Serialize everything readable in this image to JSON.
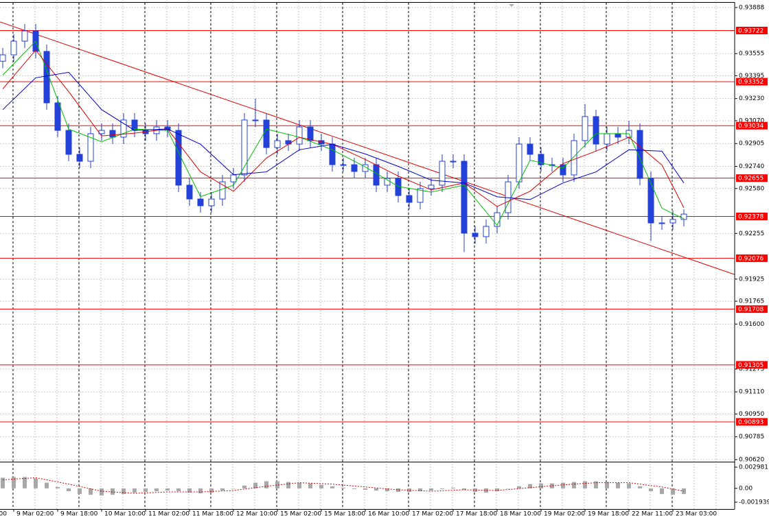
{
  "chart_data": {
    "type": "candlestick",
    "candle_color": "#2340d8",
    "open": [
      0.935,
      0.93546,
      0.93645,
      0.93719,
      0.93571,
      0.93199,
      0.93,
      0.92827,
      0.92777,
      0.92976,
      0.93,
      0.92951,
      0.93075,
      0.93,
      0.92976,
      0.93025,
      0.93,
      0.92604,
      0.92504,
      0.92455,
      0.92504,
      0.92628,
      0.92678,
      0.93075,
      0.93075,
      0.92876,
      0.92926,
      0.92901,
      0.93025,
      0.92926,
      0.92901,
      0.92752,
      0.92752,
      0.92703,
      0.92752,
      0.92604,
      0.92653,
      0.92529,
      0.9248,
      0.92579,
      0.92604,
      0.92777,
      0.92777,
      0.92257,
      0.92232,
      0.92306,
      0.92405,
      0.92628,
      0.92901,
      0.92827,
      0.92752,
      0.92752,
      0.92678,
      0.92926,
      0.931,
      0.92901,
      0.92976,
      0.92951,
      0.93,
      0.92653,
      0.92331,
      0.92331,
      0.92356
    ],
    "high": [
      0.93596,
      0.93695,
      0.93769,
      0.93769,
      0.93621,
      0.93249,
      0.9305,
      0.92877,
      0.93026,
      0.9305,
      0.9305,
      0.93125,
      0.93125,
      0.9305,
      0.93075,
      0.93075,
      0.9305,
      0.92654,
      0.92554,
      0.92554,
      0.92678,
      0.92728,
      0.93125,
      0.9323,
      0.93125,
      0.92976,
      0.92976,
      0.93075,
      0.93075,
      0.92976,
      0.92951,
      0.92802,
      0.92802,
      0.92802,
      0.92802,
      0.92703,
      0.92703,
      0.92579,
      0.92629,
      0.92654,
      0.92827,
      0.92827,
      0.92827,
      0.92307,
      0.92356,
      0.92455,
      0.92678,
      0.92951,
      0.92951,
      0.92877,
      0.92802,
      0.92802,
      0.92976,
      0.9319,
      0.9315,
      0.93026,
      0.93026,
      0.9307,
      0.9305,
      0.92703,
      0.92381,
      0.9242,
      0.9243
    ],
    "low": [
      0.9345,
      0.93496,
      0.93595,
      0.93521,
      0.93149,
      0.9295,
      0.92777,
      0.92727,
      0.92727,
      0.92926,
      0.92901,
      0.92901,
      0.9295,
      0.92926,
      0.92926,
      0.9295,
      0.92554,
      0.92454,
      0.92405,
      0.92405,
      0.92454,
      0.92578,
      0.92628,
      0.93025,
      0.92826,
      0.92826,
      0.92851,
      0.92851,
      0.92876,
      0.92851,
      0.92702,
      0.92702,
      0.92653,
      0.92653,
      0.92554,
      0.92554,
      0.92479,
      0.9243,
      0.9243,
      0.92529,
      0.92554,
      0.92727,
      0.9212,
      0.92182,
      0.92182,
      0.92256,
      0.92355,
      0.92578,
      0.92777,
      0.92702,
      0.92702,
      0.92628,
      0.92628,
      0.92876,
      0.92851,
      0.92851,
      0.92901,
      0.92901,
      0.92603,
      0.922,
      0.92281,
      0.92281,
      0.92306
    ],
    "close": [
      0.93546,
      0.93645,
      0.93719,
      0.93571,
      0.93199,
      0.93,
      0.92827,
      0.92777,
      0.92976,
      0.93,
      0.92951,
      0.93075,
      0.93,
      0.92976,
      0.93025,
      0.93,
      0.92604,
      0.92504,
      0.92455,
      0.92504,
      0.92628,
      0.92678,
      0.93075,
      0.93075,
      0.92876,
      0.92926,
      0.92901,
      0.93025,
      0.92926,
      0.92901,
      0.92752,
      0.92752,
      0.92703,
      0.92752,
      0.92604,
      0.92653,
      0.92529,
      0.9248,
      0.92579,
      0.92604,
      0.92777,
      0.92777,
      0.92257,
      0.92232,
      0.92306,
      0.92405,
      0.92628,
      0.92901,
      0.92827,
      0.92752,
      0.92752,
      0.92678,
      0.92926,
      0.931,
      0.92901,
      0.92976,
      0.92951,
      0.93,
      0.92653,
      0.92331,
      0.92331,
      0.92356,
      0.92395
    ],
    "ylim": [
      0.9062,
      0.93888
    ],
    "yticks": [
      0.93888,
      0.93555,
      0.93395,
      {
        "value": 0.9323,
        "label": "0.93230"
      },
      {
        "value": 0.9307,
        "label": "0.93070"
      },
      0.92905,
      {
        "value": 0.9274,
        "label": "0.92740"
      },
      {
        "value": 0.9258,
        "label": "0.92580"
      },
      0.92255,
      0.91925,
      0.91765,
      {
        "value": 0.916,
        "label": "0.91600"
      },
      0.91275,
      {
        "value": 0.9111,
        "label": "0.91110"
      },
      {
        "value": 0.9095,
        "label": "0.90950"
      },
      0.90785,
      {
        "value": 0.9062,
        "label": "0.90620"
      }
    ],
    "grid": true,
    "levels": {
      "color": "#ff0000",
      "values": [
        0.93722,
        0.93352,
        0.93034,
        0.92655,
        0.92378,
        0.92076,
        0.91708,
        0.91305,
        0.90893
      ]
    },
    "trendline": {
      "color": "#e00000",
      "x": [
        -0.25,
        66.6
      ],
      "y": [
        0.93784,
        0.91959
      ]
    },
    "ma_x": [
      0,
      3,
      6,
      9,
      12,
      15,
      18,
      21,
      24,
      27,
      30,
      33,
      36,
      39,
      42,
      45,
      48,
      51,
      54,
      57,
      60,
      62
    ],
    "ma": [
      {
        "color": "#00c000",
        "values": [
          0.934,
          0.93645,
          0.93009,
          0.92918,
          0.93009,
          0.93,
          0.92521,
          0.92603,
          0.93009,
          0.92951,
          0.9286,
          0.92736,
          0.92595,
          0.92554,
          0.92604,
          0.92314,
          0.92785,
          0.92727,
          0.92976,
          0.92976,
          0.92438,
          0.92361
        ]
      },
      {
        "color": "#e00000",
        "values": [
          0.933,
          0.9358,
          0.9328,
          0.9296,
          0.9298,
          0.9301,
          0.927,
          0.9256,
          0.928,
          0.9295,
          0.929,
          0.9279,
          0.9267,
          0.9257,
          0.9262,
          0.9245,
          0.9256,
          0.9276,
          0.9285,
          0.9295,
          0.9275,
          0.9244
        ]
      },
      {
        "color": "#0000c8",
        "values": [
          0.9315,
          0.9338,
          0.9342,
          0.9315,
          0.93,
          0.9301,
          0.929,
          0.9268,
          0.927,
          0.9286,
          0.929,
          0.9283,
          0.9274,
          0.9264,
          0.9262,
          0.9252,
          0.925,
          0.9262,
          0.927,
          0.9286,
          0.9285,
          0.9262
        ]
      }
    ],
    "xlabels": [
      "00",
      "9 Mar 02:00",
      "9 Mar 18:00",
      "10 Mar 10:00",
      "11 Mar 02:00",
      "11 Mar 18:00",
      "12 Mar 10:00",
      "15 Mar 02:00",
      "15 Mar 18:00",
      "16 Mar 10:00",
      "17 Mar 02:00",
      "17 Mar 18:00",
      "18 Mar 10:00",
      "19 Mar 02:00",
      "19 Mar 18:00",
      "22 Mar 11:00",
      "23 Mar 03:00"
    ],
    "oscillator": {
      "ylim": [
        -0.001939,
        0.002981
      ],
      "yticks": [
        0.002981,
        {
          "value": 0,
          "label": "0.00"
        },
        -0.001939
      ],
      "color": "#a8a8a8",
      "values": [
        0.0015,
        0.0016,
        0.0016,
        0.0014,
        0.0008,
        0.0002,
        -0.0004,
        -0.0008,
        -0.0009,
        -0.001,
        -0.0009,
        -0.0008,
        -0.0006,
        -0.0005,
        -0.0004,
        -0.0003,
        -0.0004,
        -0.0006,
        -0.0007,
        -0.0006,
        -0.0003,
        0,
        0.0004,
        0.0008,
        0.001,
        0.001,
        0.0009,
        0.0008,
        0.0007,
        0.0005,
        0.0003,
        0.0001,
        -0.0001,
        -0.0002,
        -0.0003,
        -0.0004,
        -0.0005,
        -0.0005,
        -0.0004,
        -0.0003,
        -0.0001,
        0.0001,
        -0.0002,
        -0.0005,
        -0.0006,
        -0.0004,
        0,
        0.0003,
        0.0006,
        0.0007,
        0.0007,
        0.0008,
        0.0009,
        0.001,
        0.001,
        0.0009,
        0.0008,
        0.0007,
        0.0003,
        -0.0004,
        -0.0008,
        -0.0009,
        -0.0008
      ],
      "signal": {
        "color": "#d00000",
        "values": [
          0.0012,
          0.0015,
          0.0006,
          -0.0004,
          -0.0007,
          -0.0005,
          -0.0005,
          -0.0003,
          0.0003,
          0.0008,
          0.0006,
          0.0002,
          -0.0002,
          -0.0004,
          -0.0002,
          -0.0003,
          0.0001,
          0.0005,
          0.0008,
          0.0008,
          0.0002,
          -0.0004
        ]
      }
    }
  }
}
